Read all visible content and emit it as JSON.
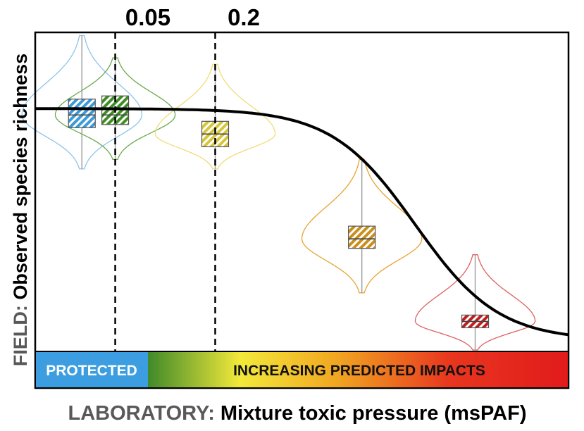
{
  "chart_data": {
    "type": "box",
    "threshold_labels": [
      "0.05",
      "0.2"
    ],
    "thresholds": [
      0.05,
      0.2
    ],
    "ylabel_prefix": "FIELD:",
    "ylabel_main": "Observed species richness",
    "xlabel_prefix": "LABORATORY:",
    "xlabel_main": "Mixture toxic pressure (msPAF)",
    "band_protected": "PROTECTED",
    "band_impacts": "INCREASING PREDICTED IMPACTS",
    "dose_response": {
      "shape": "sigmoid",
      "upper_asymptote": 0.76,
      "lower_asymptote": 0.03,
      "midpoint": 0.5,
      "slope": 16
    },
    "groups": [
      {
        "color": "#3d9ad8",
        "edge": "#8cc4ea",
        "x": 0.0,
        "q1": 0.7,
        "median": 0.74,
        "q3": 0.79,
        "vmin": 0.57,
        "vmax": 0.99,
        "halfwidth": 0.09
      },
      {
        "color": "#3f8e24",
        "edge": "#6aaa4c",
        "x": 0.05,
        "q1": 0.71,
        "median": 0.74,
        "q3": 0.8,
        "vmin": 0.6,
        "vmax": 0.92,
        "halfwidth": 0.09
      },
      {
        "color": "#d6c63a",
        "edge": "#f0dc7a",
        "x": 0.2,
        "q1": 0.64,
        "median": 0.68,
        "q3": 0.72,
        "vmin": 0.57,
        "vmax": 0.9,
        "halfwidth": 0.09
      },
      {
        "color": "#c98f1e",
        "edge": "#e6a430",
        "x": 0.42,
        "q1": 0.32,
        "median": 0.35,
        "q3": 0.39,
        "vmin": 0.18,
        "vmax": 0.6,
        "halfwidth": 0.09
      },
      {
        "color": "#c11d1d",
        "edge": "#e06060",
        "x": 0.59,
        "q1": 0.07,
        "median": 0.09,
        "q3": 0.11,
        "vmin": 0.0,
        "vmax": 0.3,
        "halfwidth": 0.09
      }
    ]
  }
}
